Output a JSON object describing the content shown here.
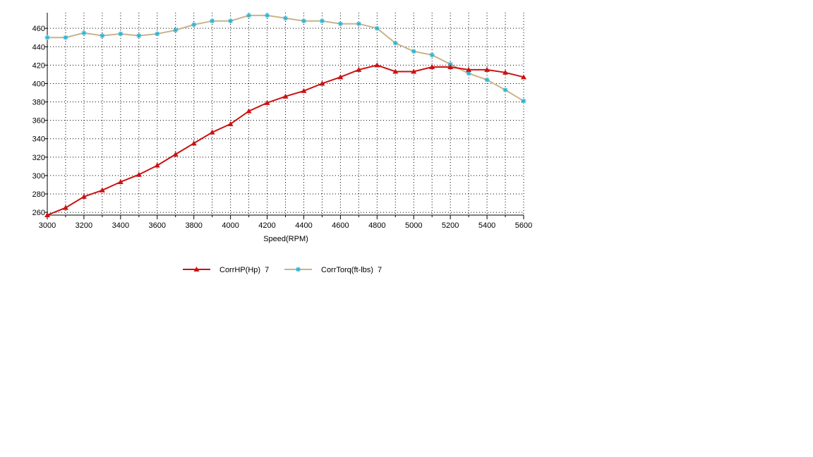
{
  "chart_data": {
    "type": "line",
    "title": "",
    "xlabel": "Speed(RPM)",
    "ylabel": "",
    "xlim": [
      3000,
      5600
    ],
    "ylim": [
      257,
      477
    ],
    "x_ticks": [
      3000,
      3200,
      3400,
      3600,
      3800,
      4000,
      4200,
      4400,
      4600,
      4800,
      5000,
      5200,
      5400,
      5600
    ],
    "y_ticks": [
      260,
      280,
      300,
      320,
      340,
      360,
      380,
      400,
      420,
      440,
      460
    ],
    "grid": true,
    "legend_position": "bottom",
    "x": [
      3000,
      3100,
      3200,
      3300,
      3400,
      3500,
      3600,
      3700,
      3800,
      3900,
      4000,
      4100,
      4200,
      4300,
      4400,
      4500,
      4600,
      4700,
      4800,
      4900,
      5000,
      5100,
      5200,
      5300,
      5400,
      5500,
      5600
    ],
    "series": [
      {
        "name": "CorrHP(Hp)  7",
        "color": "#cc1111",
        "marker": "triangle",
        "values": [
          257,
          265,
          277,
          284,
          293,
          301,
          311,
          323,
          335,
          347,
          356,
          370,
          379,
          386,
          392,
          400,
          407,
          415,
          420,
          413,
          413,
          418,
          418,
          415,
          415,
          412,
          407
        ]
      },
      {
        "name": "CorrTorq(ft-lbs)  7",
        "color": "#c8b48c",
        "marker_color": "#29b6d6",
        "marker": "star",
        "values": [
          450,
          450,
          455,
          452,
          454,
          452,
          454,
          458,
          464,
          468,
          468,
          474,
          474,
          471,
          468,
          468,
          465,
          465,
          460,
          444,
          435,
          431,
          421,
          411,
          404,
          393,
          381
        ]
      }
    ]
  }
}
